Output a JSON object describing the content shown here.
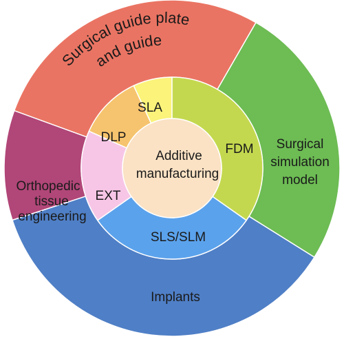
{
  "center": {
    "line1": "Additive",
    "line2": "manufacturing"
  },
  "inner_ring": [
    {
      "label": "SLA",
      "color": "#fbf37a"
    },
    {
      "label": "FDM",
      "color": "#c4d84f"
    },
    {
      "label": "SLS/SLM",
      "color": "#5ba2ec"
    },
    {
      "label": "EXT",
      "color": "#f7c6e6"
    },
    {
      "label": "DLP",
      "color": "#f6c46e"
    }
  ],
  "outer_ring": [
    {
      "lines": [
        "Surgical guide plate",
        "and guide"
      ],
      "color": "#ea7463"
    },
    {
      "lines": [
        "Surgical",
        "simulation",
        "model"
      ],
      "color": "#6dbc54"
    },
    {
      "lines": [
        "Implants"
      ],
      "color": "#4f7fc6"
    },
    {
      "lines": [
        "Orthopedic",
        "tissue",
        "engineering"
      ],
      "color": "#b14678"
    }
  ],
  "center_color": "#fbe2c4",
  "outline_color": "#ffffff"
}
